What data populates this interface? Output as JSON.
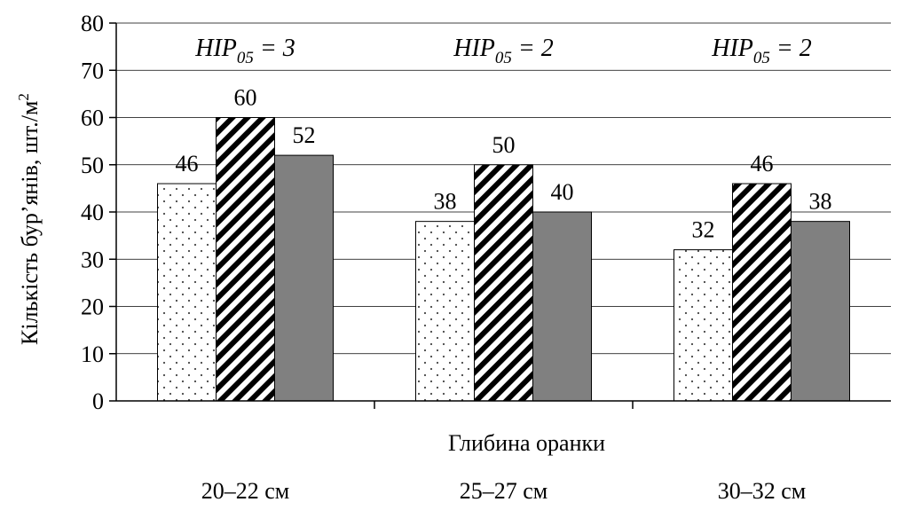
{
  "chart_data": {
    "type": "bar",
    "title": "",
    "xlabel": "Глибина оранки",
    "ylabel": "Кількість бур’янів, шт./м",
    "ylabel_superscript": "2",
    "ylim": [
      0,
      80
    ],
    "yticks": [
      0,
      10,
      20,
      30,
      40,
      50,
      60,
      70,
      80
    ],
    "grid": true,
    "categories": [
      "20–22 см",
      "25–27 см",
      "30–32 см"
    ],
    "series": [
      {
        "pattern": "dots",
        "fill": "#ffffff",
        "values": [
          46,
          38,
          32
        ]
      },
      {
        "pattern": "diagonal-stripes",
        "fill": "#ffffff",
        "values": [
          60,
          50,
          46
        ]
      },
      {
        "pattern": "solid",
        "fill": "#808080",
        "values": [
          52,
          40,
          38
        ]
      }
    ],
    "annotations": [
      {
        "main": "НІР",
        "sub": "05",
        "rest": " = 3"
      },
      {
        "main": "НІР",
        "sub": "05",
        "rest": " = 2"
      },
      {
        "main": "НІР",
        "sub": "05",
        "rest": " = 2"
      }
    ]
  }
}
